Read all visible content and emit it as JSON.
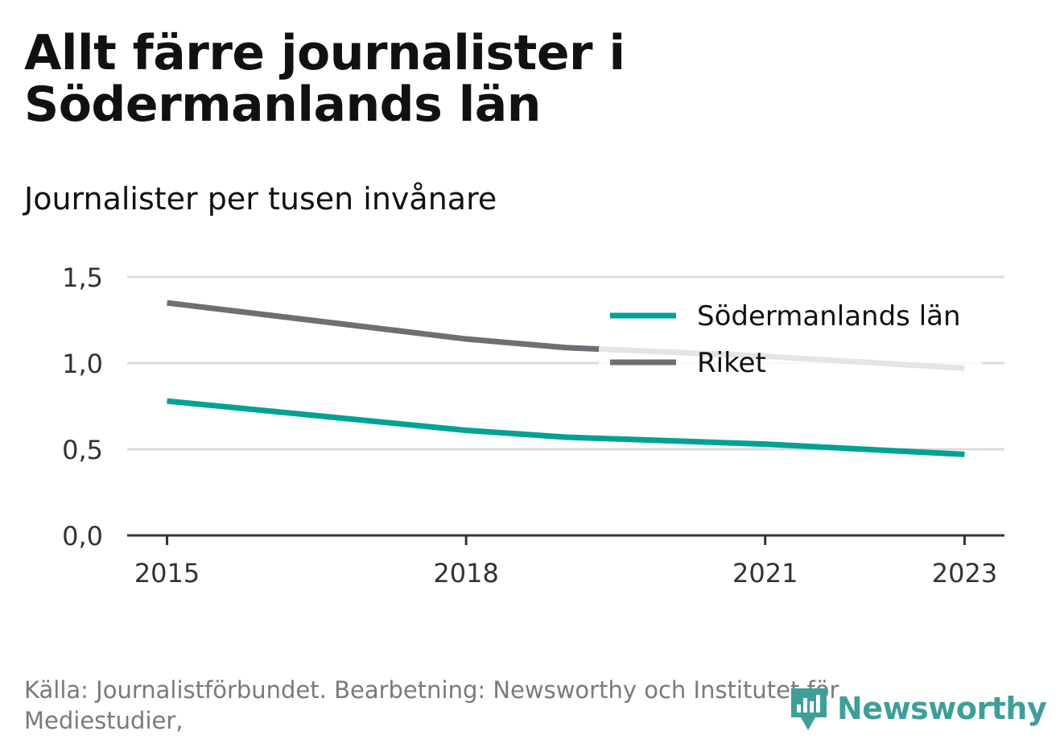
{
  "title": "Allt färre journalister i Södermanlands län",
  "subtitle": "Journalister per tusen invånare",
  "footer": "Källa: Journalistförbundet. Bearbetning: Newsworthy och Institutet för Mediestudier,",
  "brand": {
    "name": "Newsworthy",
    "icon": "newsworthy-logo-icon",
    "color": "#3e9f99"
  },
  "chart_data": {
    "type": "line",
    "x": [
      2015,
      2018,
      2019,
      2021,
      2023
    ],
    "x_ticks": [
      "2015",
      "2018",
      "2021",
      "2023"
    ],
    "y_ticks": [
      "0,0",
      "0,5",
      "1,0",
      "1,5"
    ],
    "ylim": [
      0,
      1.5
    ],
    "xlim": [
      2014.6,
      2023.4
    ],
    "grid": true,
    "legend_position": "top-right",
    "series": [
      {
        "name": "Södermanlands län",
        "color": "#00a295",
        "values": [
          0.78,
          0.61,
          0.57,
          0.53,
          0.47
        ]
      },
      {
        "name": "Riket",
        "color": "#6e6e75",
        "values": [
          1.35,
          1.14,
          1.09,
          1.04,
          0.97
        ]
      }
    ]
  }
}
